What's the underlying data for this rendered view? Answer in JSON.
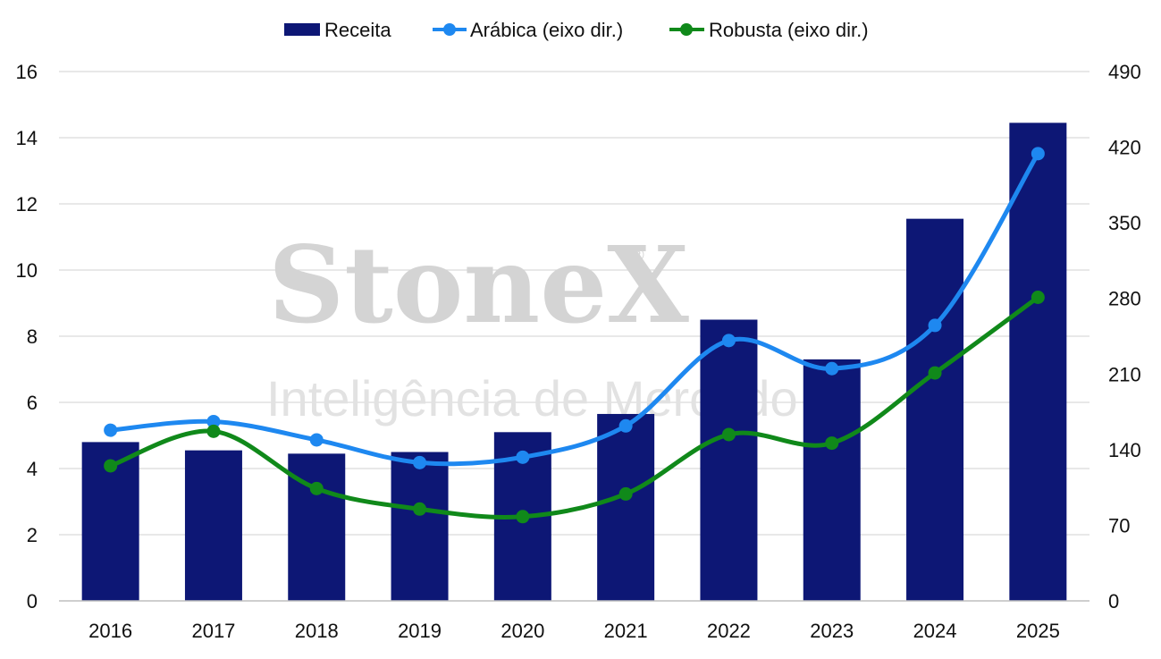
{
  "watermark": {
    "brand": "StoneX",
    "registered": "®",
    "subtitle": "Inteligência de Mercado"
  },
  "colors": {
    "receita": "#0d1775",
    "arabica": "#1e88f0",
    "robusta": "#10891a",
    "grid": "#d9d9d9"
  },
  "chart_data": {
    "type": "bar",
    "categories": [
      "2016",
      "2017",
      "2018",
      "2019",
      "2020",
      "2021",
      "2022",
      "2023",
      "2024",
      "2025"
    ],
    "series": [
      {
        "name": "Receita",
        "type": "bar",
        "axis": "left",
        "values": [
          4.8,
          4.55,
          4.45,
          4.5,
          5.1,
          5.65,
          8.5,
          7.3,
          11.55,
          14.45
        ]
      },
      {
        "name": "Arábica (eixo dir.)",
        "type": "line",
        "axis": "right",
        "values": [
          158,
          166,
          149,
          128,
          133,
          162,
          241,
          215,
          255,
          414
        ]
      },
      {
        "name": "Robusta (eixo dir.)",
        "type": "line",
        "axis": "right",
        "values": [
          125,
          157,
          104,
          85,
          78,
          99,
          154,
          146,
          211,
          281
        ]
      }
    ],
    "y_left": {
      "range": [
        0,
        16
      ],
      "ticks": [
        "0",
        "2",
        "4",
        "6",
        "8",
        "10",
        "12",
        "14",
        "16"
      ]
    },
    "y_right": {
      "range": [
        0,
        490
      ],
      "ticks": [
        "0",
        "70",
        "140",
        "210",
        "280",
        "350",
        "420",
        "490"
      ]
    },
    "grid": true,
    "legend_position": "top-center"
  }
}
